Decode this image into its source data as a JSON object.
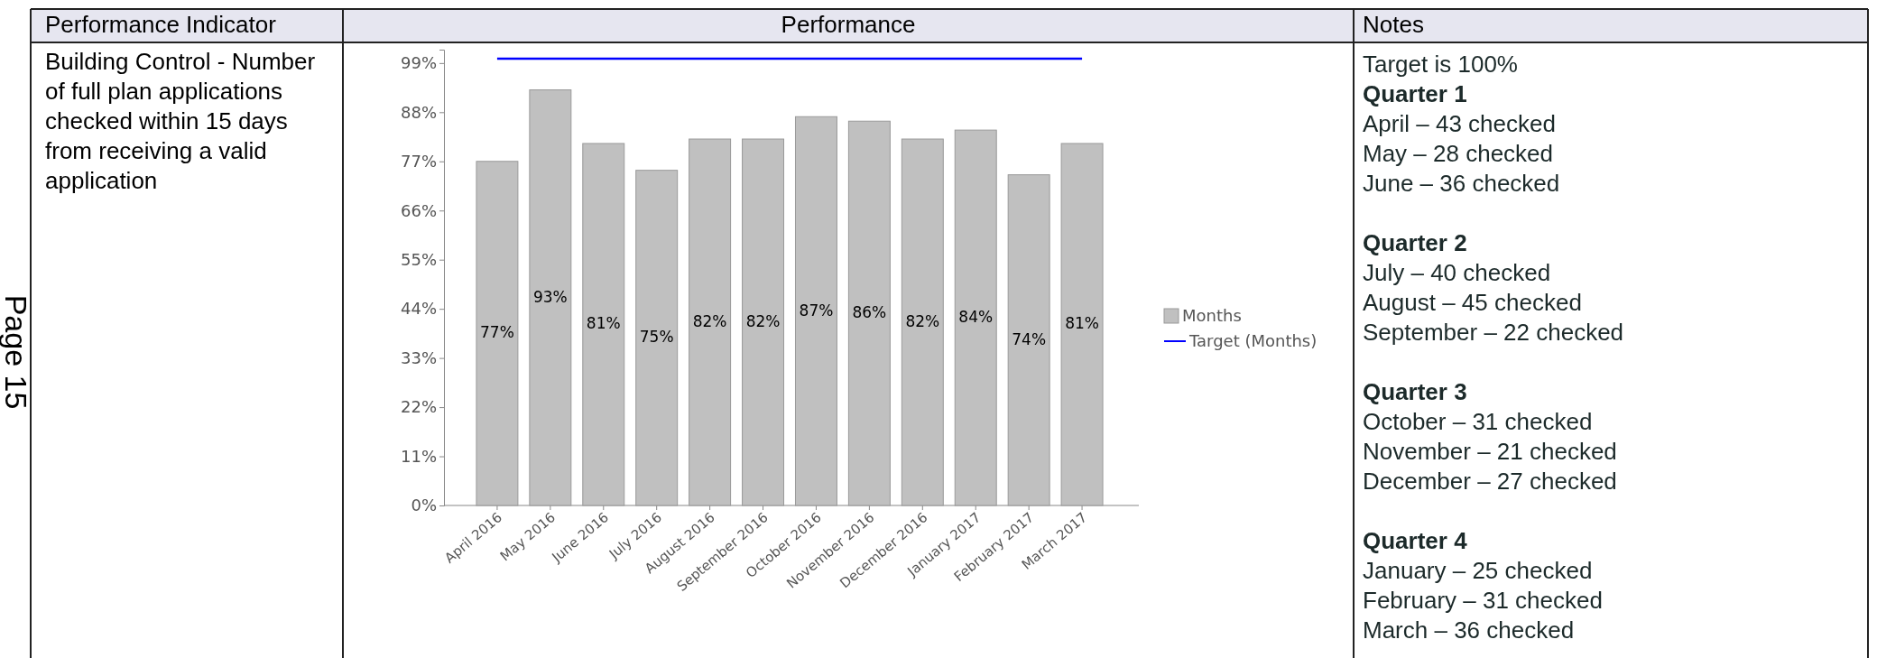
{
  "chart_data": {
    "type": "bar",
    "categories": [
      "April 2016",
      "May 2016",
      "June 2016",
      "July 2016",
      "August 2016",
      "September 2016",
      "October 2016",
      "November 2016",
      "December 2016",
      "January 2017",
      "February 2017",
      "March 2017"
    ],
    "series": [
      {
        "name": "Months",
        "color": "#c0c0c0",
        "values": [
          77,
          93,
          81,
          75,
          82,
          82,
          87,
          86,
          82,
          84,
          74,
          81
        ],
        "value_labels": [
          "77%",
          "93%",
          "81%",
          "75%",
          "82%",
          "82%",
          "87%",
          "86%",
          "82%",
          "84%",
          "74%",
          "81%"
        ]
      },
      {
        "name": "Target (Months)",
        "type": "line",
        "color": "#0000ff",
        "values": [
          100,
          100,
          100,
          100,
          100,
          100,
          100,
          100,
          100,
          100,
          100,
          100
        ]
      }
    ],
    "ylim": [
      0,
      102
    ],
    "yticks": [
      {
        "value": 0,
        "label": "0%"
      },
      {
        "value": 11,
        "label": "11%"
      },
      {
        "value": 22,
        "label": "22%"
      },
      {
        "value": 33,
        "label": "33%"
      },
      {
        "value": 44,
        "label": "44%"
      },
      {
        "value": 55,
        "label": "55%"
      },
      {
        "value": 66,
        "label": "66%"
      },
      {
        "value": 77,
        "label": "77%"
      },
      {
        "value": 88,
        "label": "88%"
      },
      {
        "value": 99,
        "label": "99%"
      }
    ],
    "legend": "right",
    "grid": false,
    "marker": "none",
    "annotations": [
      "Performance Indicator",
      "Performance",
      "Notes",
      "Building Control - Number of full plan applications checked within 15 days from receiving a valid application",
      "Page 15",
      "Target is 100%",
      "Quarter 1",
      "April – 43 checked",
      "May – 28 checked",
      "June – 36 checked",
      "Quarter 2",
      "July – 40 checked",
      "August – 45 checked",
      "September – 22 checked",
      "Quarter 3",
      "October – 31 checked",
      "November – 21 checked",
      "December – 27 checked",
      "Quarter 4",
      "January – 25 checked",
      "February – 31 checked",
      "March – 36 checked"
    ]
  }
}
